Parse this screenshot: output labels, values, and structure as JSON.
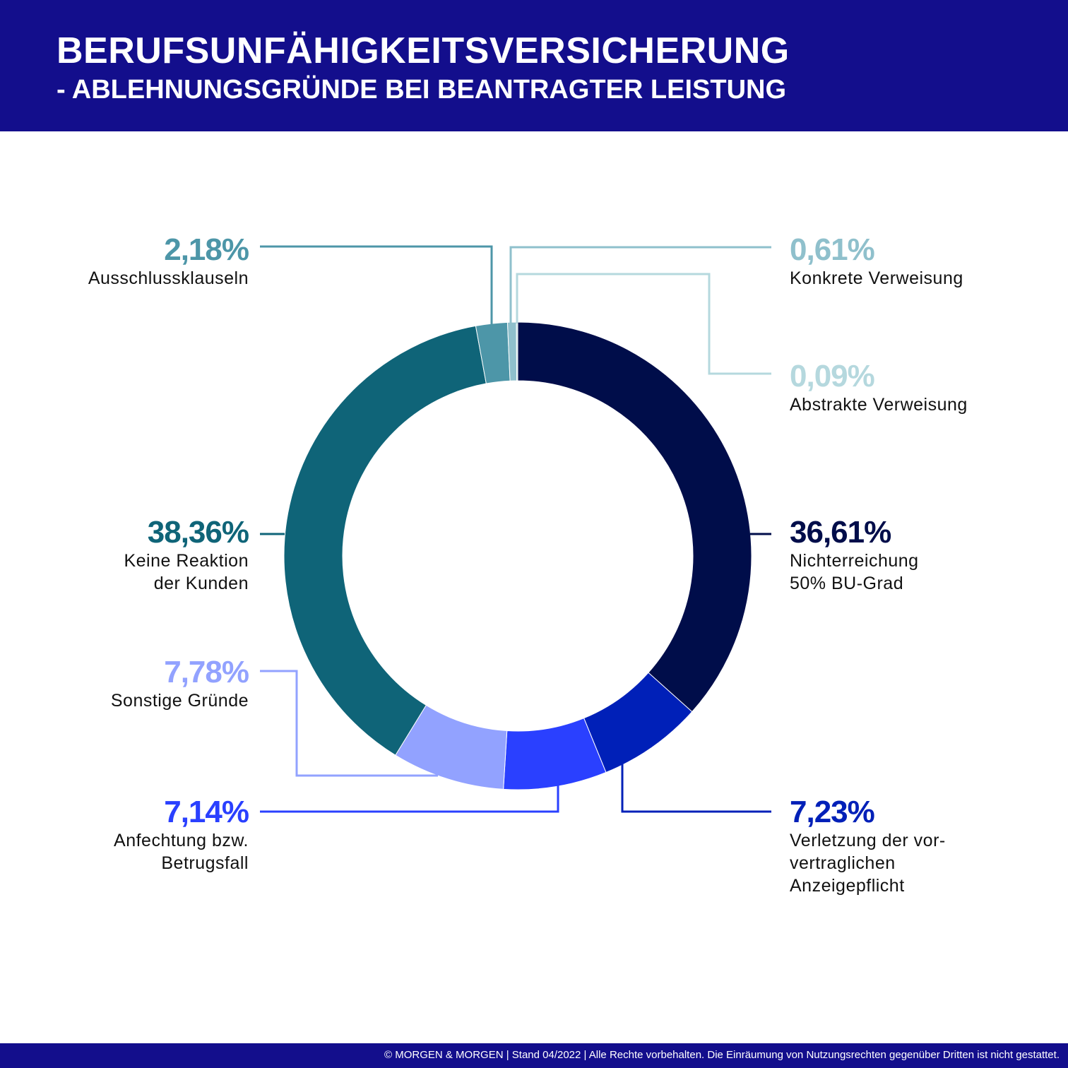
{
  "header": {
    "title": "BERUFSUNFÄHIGKEITSVERSICHERUNG",
    "subtitle": "- ABLEHNUNGSGRÜNDE BEI BEANTRAGTER LEISTUNG"
  },
  "chart_data": {
    "type": "pie",
    "style": "donut",
    "start": "top",
    "direction": "clockwise",
    "slices": [
      {
        "label": "Nichterreichung 50% BU-Grad",
        "value": 36.61,
        "value_label": "36,61%",
        "color": "#000d4a",
        "lines": [
          "Nichterreichung",
          "50% BU-Grad"
        ]
      },
      {
        "label": "Verletzung der vorvertraglichen Anzeigepflicht",
        "value": 7.23,
        "value_label": "7,23%",
        "color": "#0020b8",
        "lines": [
          "Verletzung der vor-",
          "vertraglichen",
          "Anzeigepflicht"
        ]
      },
      {
        "label": "Anfechtung bzw. Betrugsfall",
        "value": 7.14,
        "value_label": "7,14%",
        "color": "#2a40ff",
        "lines": [
          "Anfechtung bzw.",
          "Betrugsfall"
        ]
      },
      {
        "label": "Sonstige Gründe",
        "value": 7.78,
        "value_label": "7,78%",
        "color": "#92a2ff",
        "lines": [
          "Sonstige Gründe"
        ]
      },
      {
        "label": "Keine Reaktion der Kunden",
        "value": 38.36,
        "value_label": "38,36%",
        "color": "#0f6478",
        "lines": [
          "Keine Reaktion",
          "der Kunden"
        ]
      },
      {
        "label": "Ausschlussklauseln",
        "value": 2.18,
        "value_label": "2,18%",
        "color": "#4d96a8",
        "lines": [
          "Ausschlussklauseln"
        ]
      },
      {
        "label": "Konkrete Verweisung",
        "value": 0.61,
        "value_label": "0,61%",
        "color": "#8fc0cc",
        "lines": [
          "Konkrete Verweisung"
        ]
      },
      {
        "label": "Abstrakte Verweisung",
        "value": 0.09,
        "value_label": "0,09%",
        "color": "#b5d8de",
        "lines": [
          "Abstrakte Verweisung"
        ]
      }
    ]
  },
  "footer": {
    "text": "© MORGEN & MORGEN  | Stand 04/2022 | Alle Rechte vorbehalten. Die Einräumung von Nutzungsrechten gegenüber Dritten ist nicht gestattet."
  }
}
